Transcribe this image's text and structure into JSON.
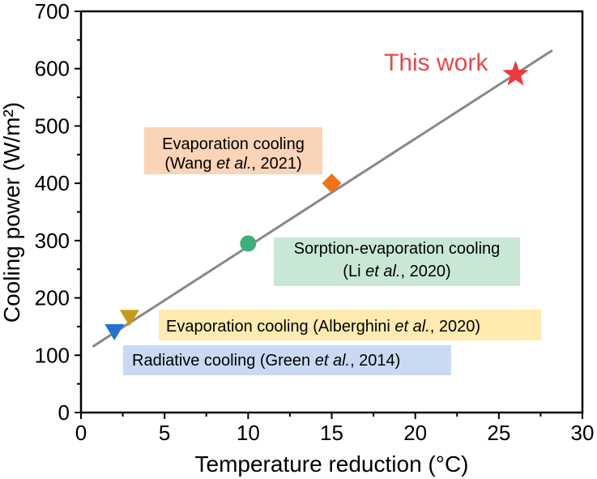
{
  "chart_data": {
    "type": "scatter",
    "xlabel": "Temperature reduction (°C)",
    "ylabel": "Cooling power (W/m²)",
    "xlim": [
      0,
      30
    ],
    "ylim": [
      0,
      700
    ],
    "x_ticks": [
      "0",
      "5",
      "10",
      "15",
      "20",
      "25",
      "30"
    ],
    "y_ticks": [
      "0",
      "100",
      "200",
      "300",
      "400",
      "500",
      "600",
      "700"
    ],
    "grid": false,
    "legend": "none",
    "trend_line": {
      "color": "#888888",
      "x": [
        0.7,
        28.2
      ],
      "y": [
        115,
        632
      ]
    },
    "points": [
      {
        "label": "This work",
        "x": 26,
        "y": 590,
        "marker": "star",
        "color": "#ee3a3f",
        "label_color": "#e8484c"
      },
      {
        "label": "Evaporation cooling",
        "citation_author": "Wang",
        "citation_etal": "et al.",
        "citation_year": ", 2021)",
        "x": 15,
        "y": 400,
        "marker": "diamond",
        "color": "#f2721c",
        "box_color": "#fbd3b7"
      },
      {
        "label": "Sorption-evaporation cooling",
        "citation_author": "Li",
        "citation_etal": "et al.",
        "citation_year": ", 2020)",
        "x": 10,
        "y": 295,
        "marker": "circle",
        "color": "#3fb07a",
        "box_color": "#c8e8d5"
      },
      {
        "label": "Evaporation cooling",
        "citation_author": "Alberghini",
        "citation_etal": "et al.",
        "citation_year": ", 2020)",
        "x": 2.9,
        "y": 165,
        "marker": "triangle-down",
        "color": "#c69b16",
        "box_color": "#ffeab0"
      },
      {
        "label": "Radiative cooling",
        "citation_author": "Green",
        "citation_etal": "et al.",
        "citation_year": ", 2014)",
        "x": 2,
        "y": 140,
        "marker": "triangle-down",
        "color": "#2271d6",
        "box_color": "#c9d9f2"
      }
    ]
  }
}
